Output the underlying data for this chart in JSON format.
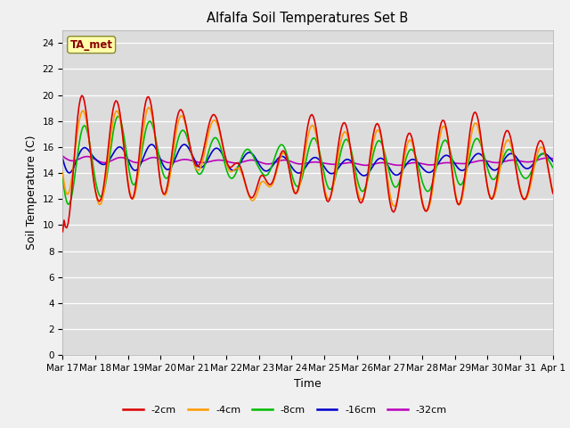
{
  "title": "Alfalfa Soil Temperatures Set B",
  "xlabel": "Time",
  "ylabel": "Soil Temperature (C)",
  "ylim": [
    0,
    25
  ],
  "yticks": [
    0,
    2,
    4,
    6,
    8,
    10,
    12,
    14,
    16,
    18,
    20,
    22,
    24
  ],
  "bg_color": "#dcdcdc",
  "fig_bg_color": "#f0f0f0",
  "series_colors": {
    "-2cm": "#dd0000",
    "-4cm": "#ff9900",
    "-8cm": "#00bb00",
    "-16cm": "#0000cc",
    "-32cm": "#bb00bb"
  },
  "annotation": "TA_met",
  "annotation_color": "#880000",
  "annotation_bg": "#ffffaa",
  "x_labels": [
    "Mar 17",
    "Mar 18",
    "Mar 19",
    "Mar 20",
    "Mar 21",
    "Mar 22",
    "Mar 23",
    "Mar 24",
    "Mar 25",
    "Mar 26",
    "Mar 27",
    "Mar 28",
    "Mar 29",
    "Mar 30",
    "Mar 31",
    "Apr 1"
  ],
  "linewidth": 1.2
}
